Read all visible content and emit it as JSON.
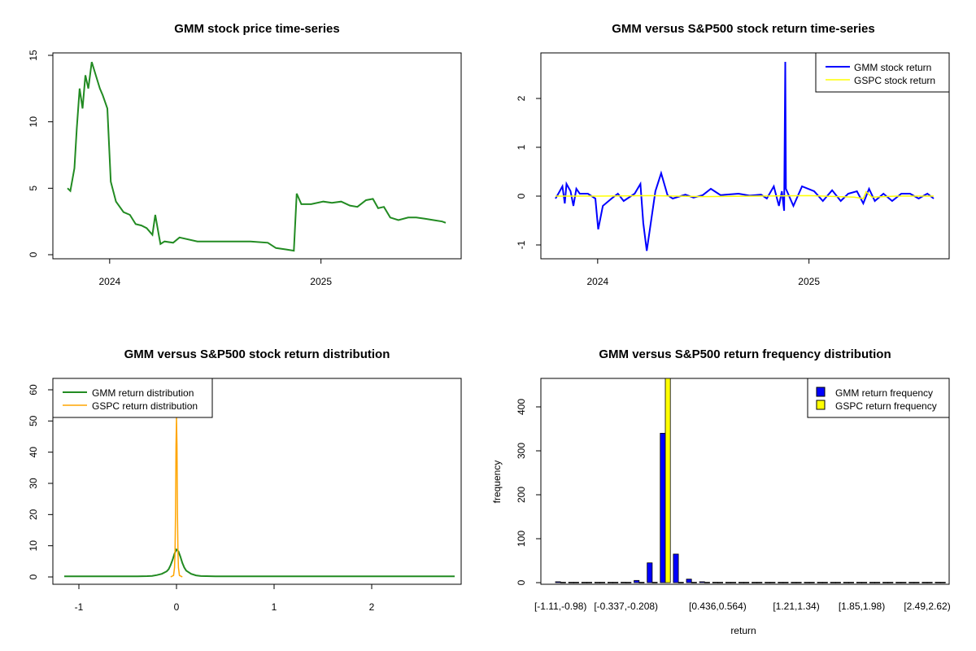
{
  "chart_data": [
    {
      "type": "line",
      "title": "GMM stock price time-series",
      "xlabel": "",
      "ylabel": "",
      "x_ticks": [
        "2024",
        "2025"
      ],
      "y_ticks": [
        "0",
        "5",
        "10",
        "15"
      ],
      "ylim": [
        0,
        15
      ],
      "colors": {
        "series": "#228B22"
      },
      "series": [
        {
          "x": [
            "2023-10-20",
            "2023-10-25",
            "2023-11-01",
            "2023-11-05",
            "2023-11-10",
            "2023-11-15",
            "2023-11-20",
            "2023-11-25",
            "2023-12-01",
            "2023-12-08",
            "2023-12-15",
            "2023-12-20",
            "2023-12-28",
            "2024-01-03",
            "2024-01-12",
            "2024-01-25",
            "2024-02-05",
            "2024-02-15",
            "2024-02-25",
            "2024-03-05",
            "2024-03-15",
            "2024-03-20",
            "2024-03-26",
            "2024-03-29",
            "2024-04-05",
            "2024-04-20",
            "2024-05-01",
            "2024-06-01",
            "2024-07-01",
            "2024-08-01",
            "2024-09-01",
            "2024-10-01",
            "2024-10-15",
            "2024-11-01",
            "2024-11-15",
            "2024-11-20",
            "2024-11-28",
            "2024-12-15",
            "2025-01-05",
            "2025-01-20",
            "2025-02-05",
            "2025-02-20",
            "2025-03-05",
            "2025-03-20",
            "2025-04-01",
            "2025-04-10",
            "2025-04-20",
            "2025-05-01",
            "2025-05-15",
            "2025-06-01",
            "2025-06-15",
            "2025-07-01",
            "2025-07-15",
            "2025-07-30",
            "2025-08-05"
          ],
          "values": [
            5.0,
            4.8,
            6.5,
            9.5,
            12.5,
            11.0,
            13.5,
            12.5,
            14.5,
            13.5,
            12.5,
            12.0,
            11.0,
            5.5,
            4.0,
            3.2,
            3.0,
            2.3,
            2.2,
            2.0,
            1.5,
            3.0,
            1.5,
            0.8,
            1.0,
            0.9,
            1.3,
            1.0,
            1.0,
            1.0,
            1.0,
            0.9,
            0.5,
            0.4,
            0.3,
            4.6,
            3.8,
            3.8,
            4.0,
            3.9,
            4.0,
            3.7,
            3.6,
            4.1,
            4.2,
            3.5,
            3.6,
            2.8,
            2.6,
            2.8,
            2.8,
            2.7,
            2.6,
            2.5,
            2.4
          ]
        }
      ]
    },
    {
      "type": "line",
      "title": "GMM versus S&P500 stock return time-series",
      "xlabel": "",
      "ylabel": "",
      "x_ticks": [
        "2024",
        "2025"
      ],
      "y_ticks": [
        "-1",
        "0",
        "1",
        "2"
      ],
      "ylim": [
        -1.2,
        2.85
      ],
      "legend_position": "top-right",
      "colors": {
        "gmm": "#0000FF",
        "gspc": "#FFFF00"
      },
      "series": [
        {
          "name": "GMM stock return",
          "x": [
            "2023-10-20",
            "2023-10-25",
            "2023-11-01",
            "2023-11-05",
            "2023-11-08",
            "2023-11-15",
            "2023-11-20",
            "2023-11-25",
            "2023-12-01",
            "2023-12-15",
            "2023-12-28",
            "2024-01-02",
            "2024-01-10",
            "2024-01-25",
            "2024-02-05",
            "2024-02-15",
            "2024-03-05",
            "2024-03-15",
            "2024-03-20",
            "2024-03-26",
            "2024-04-10",
            "2024-04-20",
            "2024-05-01",
            "2024-05-10",
            "2024-06-01",
            "2024-06-15",
            "2024-07-01",
            "2024-07-15",
            "2024-08-01",
            "2024-09-01",
            "2024-09-20",
            "2024-10-01",
            "2024-10-10",
            "2024-10-20",
            "2024-11-01",
            "2024-11-10",
            "2024-11-15",
            "2024-11-19",
            "2024-11-21",
            "2024-11-22",
            "2024-12-05",
            "2024-12-20",
            "2025-01-10",
            "2025-01-25",
            "2025-02-10",
            "2025-02-25",
            "2025-03-10",
            "2025-03-25",
            "2025-04-05",
            "2025-04-15",
            "2025-04-25",
            "2025-05-10",
            "2025-05-25",
            "2025-06-10",
            "2025-06-25",
            "2025-07-10",
            "2025-07-25",
            "2025-08-05"
          ],
          "values": [
            -0.05,
            0.05,
            0.2,
            -0.15,
            0.25,
            0.1,
            -0.2,
            0.15,
            0.05,
            0.05,
            -0.05,
            -0.68,
            -0.2,
            -0.05,
            0.05,
            -0.1,
            0.05,
            0.25,
            -0.55,
            -1.12,
            0.1,
            0.47,
            0.02,
            -0.05,
            0.03,
            -0.03,
            0.02,
            0.15,
            0.02,
            0.05,
            0.01,
            0.02,
            0.03,
            -0.05,
            0.2,
            -0.2,
            0.1,
            -0.3,
            2.75,
            0.15,
            -0.2,
            0.2,
            0.1,
            -0.1,
            0.12,
            -0.1,
            0.05,
            0.1,
            -0.15,
            0.15,
            -0.1,
            0.05,
            -0.1,
            0.05,
            0.05,
            -0.05,
            0.05,
            -0.05
          ]
        },
        {
          "name": "GSPC stock return",
          "x": [
            "2023-10-20",
            "2024-01-01",
            "2024-04-01",
            "2024-07-01",
            "2024-10-01",
            "2025-01-01",
            "2025-03-20",
            "2025-04-05",
            "2025-04-10",
            "2025-04-20",
            "2025-06-01",
            "2025-08-05"
          ],
          "values": [
            0.0,
            0.0,
            0.01,
            -0.01,
            0.0,
            0.01,
            -0.02,
            -0.05,
            0.09,
            -0.02,
            0.0,
            0.0
          ]
        }
      ]
    },
    {
      "type": "line",
      "title": "GMM versus S&P500 stock return distribution",
      "xlabel": "",
      "ylabel": "",
      "x_ticks": [
        "-1",
        "0",
        "1",
        "2"
      ],
      "y_ticks": [
        "0",
        "10",
        "20",
        "30",
        "40",
        "50",
        "60"
      ],
      "xlim": [
        -1.15,
        2.85
      ],
      "ylim": [
        0,
        62
      ],
      "legend_position": "top-left",
      "colors": {
        "gmm": "#228B22",
        "gspc": "#FFA500"
      },
      "series": [
        {
          "name": "GMM return distribution",
          "x": [
            -1.15,
            -0.4,
            -0.3,
            -0.25,
            -0.2,
            -0.15,
            -0.1,
            -0.08,
            -0.06,
            -0.04,
            -0.02,
            0,
            0.02,
            0.04,
            0.06,
            0.08,
            0.1,
            0.15,
            0.2,
            0.25,
            0.3,
            0.4,
            2.85
          ],
          "values": [
            0.2,
            0.2,
            0.25,
            0.35,
            0.6,
            1.0,
            1.8,
            2.5,
            3.8,
            5.5,
            7.5,
            8.8,
            8.2,
            6.5,
            4.5,
            3.0,
            2.0,
            1.0,
            0.5,
            0.3,
            0.25,
            0.2,
            0.2
          ]
        },
        {
          "name": "GSPC return distribution",
          "x": [
            -0.06,
            -0.03,
            -0.02,
            -0.015,
            -0.01,
            -0.005,
            0,
            0.005,
            0.01,
            0.015,
            0.02,
            0.03,
            0.06
          ],
          "values": [
            0,
            0.5,
            3,
            8,
            20,
            42,
            51,
            42,
            20,
            8,
            3,
            0.5,
            0
          ]
        }
      ]
    },
    {
      "type": "bar",
      "title": "GMM versus S&P500 return frequency distribution",
      "xlabel": "return",
      "ylabel": "frequency",
      "x_tick_labels": [
        "[-1.11,-0.98)",
        "[-0.337,-0.208)",
        "[0.436,0.564)",
        "[1.21,1.34)",
        "[1.85,1.98)",
        "[2.49,2.62)"
      ],
      "y_ticks": [
        "0",
        "100",
        "200",
        "300",
        "400"
      ],
      "ylim": [
        0,
        470
      ],
      "legend_position": "top-right",
      "colors": {
        "gmm": "#0000FF",
        "gspc": "#FFFF00"
      },
      "series": [
        {
          "name": "GMM return frequency",
          "values": [
            2,
            0,
            0,
            0,
            0,
            1,
            5,
            45,
            340,
            65,
            8,
            2,
            1,
            0,
            0,
            0,
            0,
            0,
            0,
            0,
            0,
            0,
            0,
            0,
            0,
            0,
            0,
            0,
            0,
            1
          ]
        },
        {
          "name": "GSPC return frequency",
          "values": [
            0,
            0,
            0,
            0,
            0,
            0,
            0,
            0,
            470,
            0,
            0,
            0,
            0,
            0,
            0,
            0,
            0,
            0,
            0,
            0,
            0,
            0,
            0,
            0,
            0,
            0,
            0,
            0,
            0,
            0
          ]
        }
      ]
    }
  ]
}
